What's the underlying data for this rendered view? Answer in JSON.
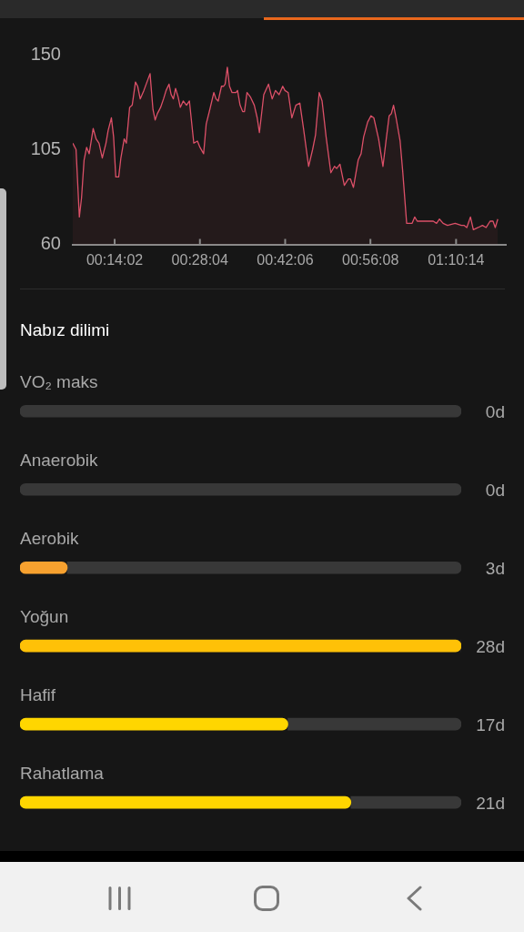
{
  "chart_data": [
    {
      "type": "area",
      "color": "#dc5068",
      "xlim": [
        0.119,
        1.307
      ],
      "ylim": [
        60,
        150
      ],
      "xticks": [
        {
          "value": 0.2339,
          "label": "00:14:02"
        },
        {
          "value": 0.4678,
          "label": "00:28:04"
        },
        {
          "value": 0.7017,
          "label": "00:42:06"
        },
        {
          "value": 0.9356,
          "label": "00:56:08"
        },
        {
          "value": 1.1706,
          "label": "01:10:14"
        }
      ],
      "yticks": [
        60,
        105,
        150
      ],
      "x": [
        0.119,
        0.128,
        0.137,
        0.143,
        0.15,
        0.157,
        0.164,
        0.175,
        0.183,
        0.191,
        0.2,
        0.21,
        0.216,
        0.225,
        0.231,
        0.237,
        0.245,
        0.251,
        0.26,
        0.266,
        0.275,
        0.282,
        0.291,
        0.297,
        0.304,
        0.314,
        0.331,
        0.339,
        0.345,
        0.351,
        0.36,
        0.368,
        0.375,
        0.383,
        0.389,
        0.395,
        0.401,
        0.408,
        0.414,
        0.422,
        0.431,
        0.439,
        0.451,
        0.461,
        0.468,
        0.478,
        0.485,
        0.495,
        0.506,
        0.512,
        0.518,
        0.527,
        0.533,
        0.537,
        0.543,
        0.549,
        0.556,
        0.567,
        0.571,
        0.578,
        0.585,
        0.59,
        0.597,
        0.606,
        0.617,
        0.625,
        0.631,
        0.643,
        0.656,
        0.666,
        0.675,
        0.685,
        0.695,
        0.701,
        0.71,
        0.72,
        0.731,
        0.742,
        0.752,
        0.766,
        0.777,
        0.785,
        0.795,
        0.803,
        0.814,
        0.827,
        0.837,
        0.843,
        0.852,
        0.864,
        0.875,
        0.881,
        0.889,
        0.902,
        0.91,
        0.917,
        0.928,
        0.937,
        0.945,
        0.958,
        0.97,
        0.979,
        0.987,
        0.993,
        0.999,
        1.006,
        1.017,
        1.024,
        1.035,
        1.043,
        1.05,
        1.057,
        1.064,
        1.077,
        1.089,
        1.097,
        1.108,
        1.117,
        1.125,
        1.135,
        1.147,
        1.168,
        1.185,
        1.193,
        1.2,
        1.21,
        1.218,
        1.231,
        1.243,
        1.253,
        1.264,
        1.272,
        1.278,
        1.285
      ],
      "values": [
        108,
        105,
        73,
        82,
        100,
        106,
        103,
        115,
        110,
        108,
        101,
        108,
        114,
        120,
        111,
        92,
        92,
        101,
        110,
        108,
        125,
        126,
        137,
        135,
        129,
        133,
        141,
        124,
        119,
        122,
        125,
        129,
        133,
        136,
        131,
        129,
        134,
        130,
        125,
        128,
        126,
        128,
        108,
        109,
        106,
        103,
        117,
        124,
        132,
        129,
        128,
        135,
        135,
        136,
        144,
        135,
        132,
        132,
        133,
        126,
        123,
        123,
        132,
        130,
        126,
        120,
        113,
        131,
        136,
        129,
        133,
        131,
        135,
        133,
        132,
        120,
        126,
        127,
        115,
        97,
        105,
        112,
        132,
        128,
        111,
        94,
        97,
        96,
        98,
        88,
        91,
        91,
        87,
        100,
        103,
        111,
        118,
        121,
        120,
        110,
        97,
        110,
        121,
        122,
        126,
        120,
        109,
        95,
        70,
        70,
        70,
        73,
        71,
        71,
        71,
        71,
        71,
        70,
        72,
        70,
        69,
        70,
        69,
        69,
        68,
        73,
        67,
        68,
        69,
        68,
        71,
        71,
        68,
        72
      ]
    },
    {
      "type": "bar",
      "orientation": "horizontal",
      "stacked": true,
      "title": "Nabız dilimi",
      "categories": [
        "VO₂ maks",
        "Anaerobik",
        "Aerobik",
        "Yoğun",
        "Hafif",
        "Rahatlama"
      ],
      "series": [
        {
          "values": [
            0,
            0,
            3,
            28,
            17,
            21
          ],
          "colors": [
            null,
            null,
            "#f7a12f",
            "#ffc107",
            "#ffd600",
            "#ffd600"
          ],
          "value_labels": [
            "0d",
            "0d",
            "3d",
            "28d",
            "17d",
            "21d"
          ]
        },
        {
          "values": [
            28,
            28,
            25,
            0,
            11,
            7
          ],
          "color": "#383838"
        }
      ],
      "xlim": [
        0,
        28
      ],
      "tick_labels": "y"
    }
  ]
}
